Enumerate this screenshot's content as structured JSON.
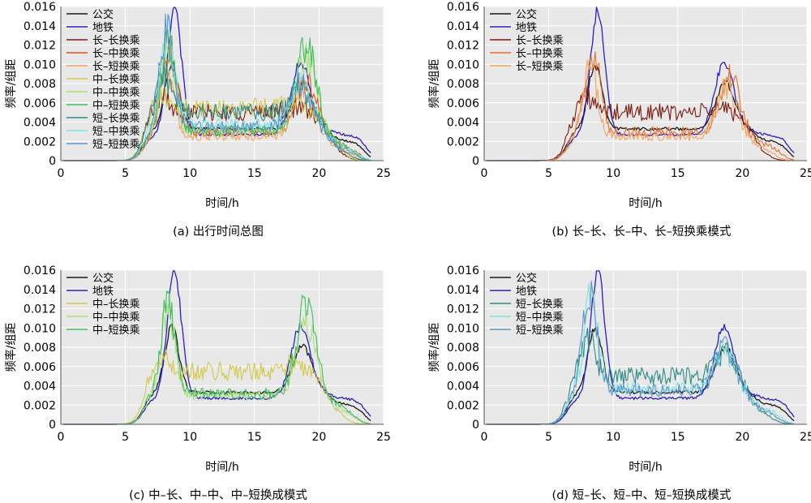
{
  "chart_data": [
    {
      "id": "a",
      "type": "line",
      "caption": "(a) 出行时间总图",
      "xlabel": "时间/h",
      "ylabel": "频率/组距",
      "xlim": [
        0,
        25
      ],
      "ylim": [
        0,
        0.016
      ],
      "xticks": [
        "0",
        "5",
        "10",
        "15",
        "20",
        "25"
      ],
      "yticks": [
        "0",
        "0.002",
        "0.004",
        "0.006",
        "0.008",
        "0.010",
        "0.012",
        "0.014",
        "0.016"
      ],
      "grid": true,
      "legend_position": "top-left",
      "series": [
        {
          "name": "公交",
          "color": "#1a1a1a",
          "am_peak_time": 8.6,
          "am_peak": 0.01,
          "midday": 0.0033,
          "pm_peak_time": 18.7,
          "pm_peak": 0.008,
          "evening": 0.002,
          "end_time": 23.5
        },
        {
          "name": "地铁",
          "color": "#2a1fc0",
          "am_peak_time": 8.8,
          "am_peak": 0.0158,
          "midday": 0.0027,
          "pm_peak_time": 18.6,
          "pm_peak": 0.0102,
          "evening": 0.0026,
          "end_time": 23.7
        },
        {
          "name": "长–长换乘",
          "color": "#7b1a10",
          "am_peak_time": 7.8,
          "am_peak": 0.0068,
          "midday": 0.005,
          "pm_peak_time": 18.3,
          "pm_peak": 0.0055,
          "evening": 0.0008,
          "end_time": 22.0
        },
        {
          "name": "长–中换乘",
          "color": "#d9541c",
          "am_peak_time": 8.4,
          "am_peak": 0.0118,
          "midday": 0.003,
          "pm_peak_time": 19.0,
          "pm_peak": 0.0088,
          "evening": 0.0015,
          "end_time": 23.0
        },
        {
          "name": "长–短换乘",
          "color": "#f4a460",
          "am_peak_time": 8.2,
          "am_peak": 0.0095,
          "midday": 0.0025,
          "pm_peak_time": 18.8,
          "pm_peak": 0.0078,
          "evening": 0.0012,
          "end_time": 22.5
        },
        {
          "name": "中–长换乘",
          "color": "#d4c84a",
          "am_peak_time": 7.8,
          "am_peak": 0.0068,
          "midday": 0.0055,
          "pm_peak_time": 17.8,
          "pm_peak": 0.0062,
          "evening": 0.001,
          "end_time": 22.0
        },
        {
          "name": "中–中换乘",
          "color": "#a8df7a",
          "am_peak_time": 8.3,
          "am_peak": 0.012,
          "midday": 0.003,
          "pm_peak_time": 19.0,
          "pm_peak": 0.011,
          "evening": 0.0014,
          "end_time": 22.8
        },
        {
          "name": "中–短换乘",
          "color": "#3fbf5f",
          "am_peak_time": 8.3,
          "am_peak": 0.0125,
          "midday": 0.0032,
          "pm_peak_time": 19.0,
          "pm_peak": 0.0122,
          "evening": 0.0016,
          "end_time": 22.8
        },
        {
          "name": "短–长换乘",
          "color": "#2e8b84",
          "am_peak_time": 8.0,
          "am_peak": 0.009,
          "midday": 0.005,
          "pm_peak_time": 18.5,
          "pm_peak": 0.0075,
          "evening": 0.0008,
          "end_time": 22.5
        },
        {
          "name": "短–中换乘",
          "color": "#7fe3e3",
          "am_peak_time": 8.3,
          "am_peak": 0.013,
          "midday": 0.0037,
          "pm_peak_time": 18.6,
          "pm_peak": 0.0078,
          "evening": 0.0014,
          "end_time": 23.0
        },
        {
          "name": "短–短换乘",
          "color": "#5b95c8",
          "am_peak_time": 8.2,
          "am_peak": 0.0135,
          "midday": 0.0035,
          "pm_peak_time": 18.6,
          "pm_peak": 0.008,
          "evening": 0.0012,
          "end_time": 22.8
        }
      ]
    },
    {
      "id": "b",
      "type": "line",
      "caption": "(b) 长–长、长–中、长–短换乘模式",
      "xlabel": "时间/h",
      "ylabel": "频率/组距",
      "xlim": [
        0,
        25
      ],
      "ylim": [
        0,
        0.016
      ],
      "xticks": [
        "0",
        "5",
        "10",
        "15",
        "20",
        "25"
      ],
      "yticks": [
        "0",
        "0.002",
        "0.004",
        "0.006",
        "0.008",
        "0.010",
        "0.012",
        "0.014",
        "0.016"
      ],
      "grid": true,
      "legend_position": "top-left",
      "series": [
        {
          "name": "公交",
          "color": "#1a1a1a",
          "am_peak_time": 8.6,
          "am_peak": 0.01,
          "midday": 0.0033,
          "pm_peak_time": 18.7,
          "pm_peak": 0.008,
          "evening": 0.002,
          "end_time": 23.5
        },
        {
          "name": "地铁",
          "color": "#2a1fc0",
          "am_peak_time": 8.8,
          "am_peak": 0.0158,
          "midday": 0.0027,
          "pm_peak_time": 18.6,
          "pm_peak": 0.0102,
          "evening": 0.0026,
          "end_time": 23.7
        },
        {
          "name": "长–长换乘",
          "color": "#7b1a10",
          "am_peak_time": 7.8,
          "am_peak": 0.0068,
          "midday": 0.005,
          "pm_peak_time": 18.3,
          "pm_peak": 0.0055,
          "evening": 0.0008,
          "end_time": 22.0
        },
        {
          "name": "长–中换乘",
          "color": "#e8702a",
          "am_peak_time": 8.4,
          "am_peak": 0.0118,
          "midday": 0.003,
          "pm_peak_time": 19.0,
          "pm_peak": 0.0088,
          "evening": 0.0015,
          "end_time": 23.0
        },
        {
          "name": "长–短换乘",
          "color": "#f4a460",
          "am_peak_time": 8.2,
          "am_peak": 0.0095,
          "midday": 0.0025,
          "pm_peak_time": 18.8,
          "pm_peak": 0.0078,
          "evening": 0.0012,
          "end_time": 22.5
        }
      ]
    },
    {
      "id": "c",
      "type": "line",
      "caption": "(c) 中–长、中–中、中–短换成模式",
      "xlabel": "时间/h",
      "ylabel": "频率/组距",
      "xlim": [
        0,
        25
      ],
      "ylim": [
        0,
        0.016
      ],
      "xticks": [
        "0",
        "5",
        "10",
        "15",
        "20",
        "25"
      ],
      "yticks": [
        "0",
        "0.002",
        "0.004",
        "0.006",
        "0.008",
        "0.010",
        "0.012",
        "0.014",
        "0.016"
      ],
      "grid": true,
      "legend_position": "top-left",
      "series": [
        {
          "name": "公交",
          "color": "#1a1a1a",
          "am_peak_time": 8.6,
          "am_peak": 0.01,
          "midday": 0.0033,
          "pm_peak_time": 18.7,
          "pm_peak": 0.008,
          "evening": 0.002,
          "end_time": 23.5
        },
        {
          "name": "地铁",
          "color": "#2a1fc0",
          "am_peak_time": 8.8,
          "am_peak": 0.0158,
          "midday": 0.0027,
          "pm_peak_time": 18.6,
          "pm_peak": 0.0102,
          "evening": 0.0026,
          "end_time": 23.7
        },
        {
          "name": "中–长换乘",
          "color": "#d4c84a",
          "am_peak_time": 7.8,
          "am_peak": 0.0068,
          "midday": 0.0055,
          "pm_peak_time": 17.8,
          "pm_peak": 0.0062,
          "evening": 0.001,
          "end_time": 22.0
        },
        {
          "name": "中–中换乘",
          "color": "#a8df7a",
          "am_peak_time": 8.3,
          "am_peak": 0.012,
          "midday": 0.003,
          "pm_peak_time": 19.0,
          "pm_peak": 0.011,
          "evening": 0.0014,
          "end_time": 22.8
        },
        {
          "name": "中–短换乘",
          "color": "#3fbf5f",
          "am_peak_time": 8.3,
          "am_peak": 0.0125,
          "midday": 0.0032,
          "pm_peak_time": 19.0,
          "pm_peak": 0.0122,
          "evening": 0.0016,
          "end_time": 22.8
        }
      ]
    },
    {
      "id": "d",
      "type": "line",
      "caption": "(d) 短–长、短–中、短–短换成模式",
      "xlabel": "时间/h",
      "ylabel": "频率/组距",
      "xlim": [
        0,
        25
      ],
      "ylim": [
        0,
        0.016
      ],
      "xticks": [
        "0",
        "5",
        "10",
        "15",
        "20",
        "25"
      ],
      "yticks": [
        "0",
        "0.002",
        "0.004",
        "0.006",
        "0.008",
        "0.010",
        "0.012",
        "0.014",
        "0.016"
      ],
      "grid": true,
      "legend_position": "top-left",
      "series": [
        {
          "name": "公交",
          "color": "#1a1a1a",
          "am_peak_time": 8.6,
          "am_peak": 0.01,
          "midday": 0.0033,
          "pm_peak_time": 18.7,
          "pm_peak": 0.008,
          "evening": 0.002,
          "end_time": 23.5
        },
        {
          "name": "地铁",
          "color": "#2a1fc0",
          "am_peak_time": 8.8,
          "am_peak": 0.0158,
          "midday": 0.0027,
          "pm_peak_time": 18.6,
          "pm_peak": 0.0102,
          "evening": 0.0026,
          "end_time": 23.7
        },
        {
          "name": "短–长换乘",
          "color": "#2e8b84",
          "am_peak_time": 8.0,
          "am_peak": 0.009,
          "midday": 0.005,
          "pm_peak_time": 18.5,
          "pm_peak": 0.0075,
          "evening": 0.0008,
          "end_time": 22.5
        },
        {
          "name": "短–中换乘",
          "color": "#7fe3e3",
          "am_peak_time": 8.3,
          "am_peak": 0.013,
          "midday": 0.0037,
          "pm_peak_time": 18.6,
          "pm_peak": 0.0078,
          "evening": 0.0014,
          "end_time": 23.0
        },
        {
          "name": "短–短换乘",
          "color": "#5b95c8",
          "am_peak_time": 8.2,
          "am_peak": 0.0135,
          "midday": 0.0035,
          "pm_peak_time": 18.6,
          "pm_peak": 0.008,
          "evening": 0.0012,
          "end_time": 22.8
        }
      ]
    }
  ]
}
